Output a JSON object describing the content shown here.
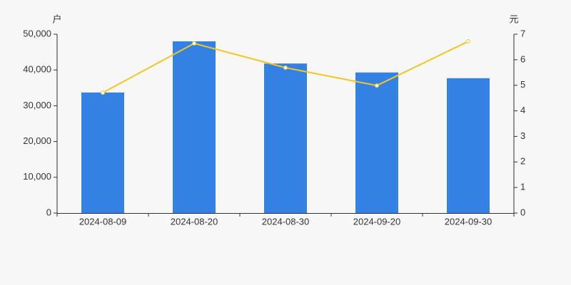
{
  "chart_data": {
    "type": "bar",
    "y_label": "户",
    "y2_label": "元",
    "categories": [
      "2024-08-09",
      "2024-08-20",
      "2024-08-30",
      "2024-09-20",
      "2024-09-30"
    ],
    "series": [
      {
        "type": "bar",
        "color": "#3381e3",
        "values": [
          33700,
          48000,
          41800,
          39300,
          37700
        ]
      },
      {
        "type": "line",
        "axis": "y2",
        "color": "#f5c623",
        "values": [
          4.71,
          6.64,
          5.69,
          4.99,
          6.72
        ]
      }
    ],
    "ylim": [
      0,
      50000
    ],
    "yticks": [
      0,
      {
        "value": 10000,
        "label": "10,000"
      },
      {
        "value": 20000,
        "label": "20,000"
      },
      {
        "value": 30000,
        "label": "30,000"
      },
      {
        "value": 40000,
        "label": "40,000"
      },
      {
        "value": 50000,
        "label": "50,000"
      }
    ],
    "y2lim": [
      0,
      7
    ],
    "y2ticks": [
      0,
      1,
      2,
      3,
      4,
      5,
      6,
      7
    ],
    "grid": false
  }
}
